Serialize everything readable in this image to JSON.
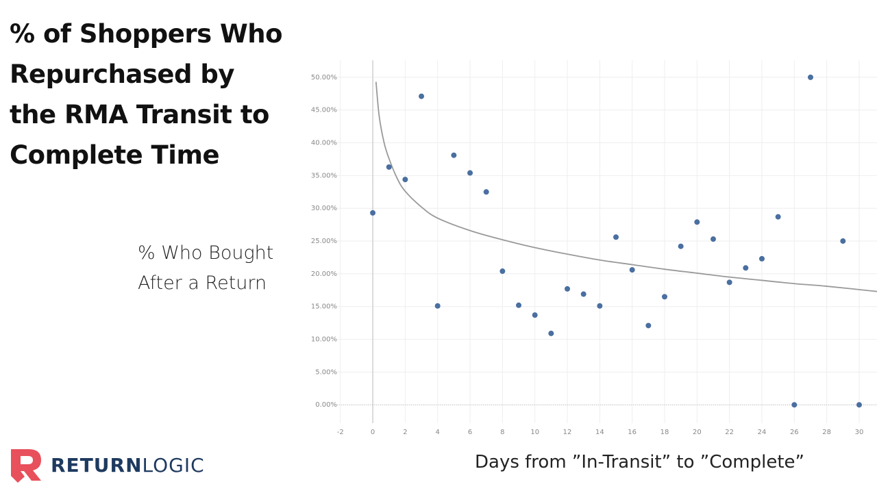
{
  "chart_data": {
    "type": "scatter",
    "title": "% of Shoppers Who Repurchased by the RMA Transit to Complete Time",
    "y_label": "% Who Bought After a Return",
    "x_label": "Days from ”In-Transit” to ”Complete”",
    "series": [
      {
        "color": "#4a6fa0",
        "x": [
          0,
          1,
          2,
          3,
          4,
          5,
          6,
          7,
          8,
          9,
          10,
          11,
          12,
          13,
          14,
          15,
          16,
          17,
          18,
          19,
          20,
          21,
          22,
          23,
          24,
          25,
          26,
          27,
          29,
          30
        ],
        "values": [
          29.3,
          36.3,
          34.4,
          47.1,
          15.1,
          38.1,
          35.4,
          32.5,
          20.4,
          15.2,
          13.7,
          10.9,
          17.7,
          16.9,
          15.1,
          25.6,
          20.6,
          12.1,
          16.5,
          24.2,
          27.9,
          25.3,
          18.7,
          20.9,
          22.3,
          28.7,
          0,
          50,
          25.0,
          0
        ]
      }
    ],
    "trendline": {
      "color": "#999999",
      "x": [
        0.2,
        0.4,
        0.7,
        1,
        1.5,
        2,
        3,
        4,
        6,
        8,
        10,
        12,
        14,
        16,
        18,
        20,
        22,
        24,
        26,
        28,
        31.1
      ],
      "values": [
        49.3,
        44,
        40,
        37.6,
        34.6,
        32.6,
        30.2,
        28.5,
        26.6,
        25.2,
        24,
        23,
        22.1,
        21.4,
        20.7,
        20.1,
        19.5,
        19,
        18.5,
        18.1,
        17.3
      ]
    },
    "xlim": [
      -2.2,
      31.1
    ],
    "ylim": [
      -2.8,
      52.6
    ],
    "xticks": [
      -2,
      0,
      2,
      4,
      6,
      8,
      10,
      12,
      14,
      16,
      18,
      20,
      22,
      24,
      26,
      28,
      30
    ],
    "yticks": [
      {
        "value": 0,
        "label": "0.00%"
      },
      {
        "value": 5,
        "label": "5.00%"
      },
      {
        "value": 10,
        "label": "10.00%"
      },
      {
        "value": 15,
        "label": "15.00%"
      },
      {
        "value": 20,
        "label": "20.00%"
      },
      {
        "value": 25,
        "label": "25.00%"
      },
      {
        "value": 30,
        "label": "30.00%"
      },
      {
        "value": 35,
        "label": "35.00%"
      },
      {
        "value": 40,
        "label": "40.00%"
      },
      {
        "value": 45,
        "label": "45.00%"
      },
      {
        "value": 50,
        "label": "50.00%"
      }
    ],
    "grid": true
  },
  "logo": {
    "bold": "RETURN",
    "light": "LOGIC"
  }
}
